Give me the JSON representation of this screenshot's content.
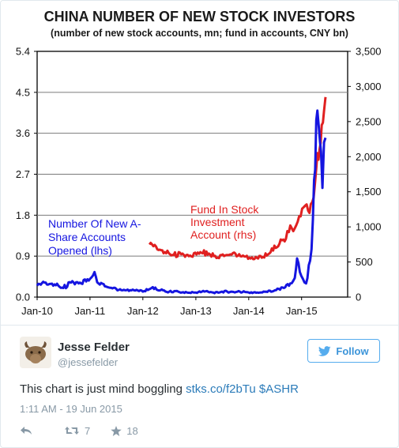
{
  "chart_data": {
    "type": "line",
    "title": "CHINA NUMBER OF NEW STOCK INVESTORS",
    "subtitle": "(number of new stock accounts, mn; fund in accounts, CNY bn)",
    "x_ticks": [
      "Jan-10",
      "Jan-11",
      "Jan-12",
      "Jan-13",
      "Jan-14",
      "Jan-15"
    ],
    "y_left": {
      "ticks": [
        "0.0",
        "0.9",
        "1.8",
        "2.7",
        "3.6",
        "4.5",
        "5.4"
      ],
      "lim": [
        0,
        5.4
      ]
    },
    "y_right": {
      "ticks": [
        "0",
        "500",
        "1,000",
        "1,500",
        "2,000",
        "2,500",
        "3,000",
        "3,500"
      ],
      "lim": [
        0,
        3500
      ]
    },
    "grid": true,
    "series": [
      {
        "name": "Number Of New A-Share Accounts Opened (lhs)",
        "label_lines": [
          "Number Of New A-",
          "Share Accounts",
          "Opened (lhs)"
        ],
        "axis": "left",
        "color": "#1515e0",
        "x": [
          "2010-01-01",
          "2010-03-01",
          "2010-05-01",
          "2010-07-01",
          "2010-09-01",
          "2010-11-01",
          "2011-01-01",
          "2011-02-01",
          "2011-03-01",
          "2011-05-01",
          "2011-07-01",
          "2011-09-01",
          "2011-11-01",
          "2012-01-01",
          "2012-03-01",
          "2012-05-01",
          "2012-07-01",
          "2012-09-01",
          "2012-11-01",
          "2013-01-01",
          "2013-03-01",
          "2013-05-01",
          "2013-07-01",
          "2013-09-01",
          "2013-11-01",
          "2014-01-01",
          "2014-03-01",
          "2014-05-01",
          "2014-07-01",
          "2014-09-01",
          "2014-10-15",
          "2014-11-15",
          "2014-12-01",
          "2014-12-20",
          "2015-01-10",
          "2015-02-01",
          "2015-03-01",
          "2015-03-20",
          "2015-04-05",
          "2015-04-20",
          "2015-05-01",
          "2015-05-15",
          "2015-05-25",
          "2015-06-05",
          "2015-06-15"
        ],
        "values": [
          0.25,
          0.32,
          0.28,
          0.2,
          0.35,
          0.3,
          0.4,
          0.55,
          0.3,
          0.22,
          0.18,
          0.15,
          0.15,
          0.12,
          0.2,
          0.15,
          0.12,
          0.12,
          0.1,
          0.1,
          0.12,
          0.1,
          0.12,
          0.12,
          0.12,
          0.1,
          0.1,
          0.12,
          0.15,
          0.2,
          0.3,
          0.42,
          0.85,
          0.55,
          0.4,
          0.3,
          0.8,
          1.7,
          2.8,
          4.1,
          3.7,
          3.2,
          2.4,
          3.4,
          3.5
        ]
      },
      {
        "name": "Fund In Stock Investment Account (rhs)",
        "label_lines": [
          "Fund In Stock",
          "Investment",
          "Account (rhs)"
        ],
        "axis": "right",
        "color": "#e02020",
        "x": [
          "2012-02-15",
          "2012-04-01",
          "2012-06-01",
          "2012-08-01",
          "2012-10-01",
          "2012-12-01",
          "2013-02-01",
          "2013-04-01",
          "2013-06-01",
          "2013-08-01",
          "2013-10-01",
          "2013-12-01",
          "2014-02-01",
          "2014-04-01",
          "2014-06-01",
          "2014-08-01",
          "2014-09-15",
          "2014-10-15",
          "2014-11-15",
          "2014-12-15",
          "2015-01-15",
          "2015-02-15",
          "2015-03-15",
          "2015-04-05",
          "2015-04-20",
          "2015-05-05",
          "2015-05-20",
          "2015-06-05",
          "2015-06-15"
        ],
        "values": [
          750,
          720,
          640,
          600,
          620,
          580,
          640,
          620,
          560,
          600,
          620,
          580,
          540,
          560,
          640,
          760,
          830,
          1020,
          980,
          1150,
          1280,
          1230,
          1350,
          1650,
          2050,
          2100,
          2450,
          2650,
          2850
        ]
      }
    ]
  },
  "tweet": {
    "author_name": "Jesse Felder",
    "author_handle": "@jessefelder",
    "follow_label": "Follow",
    "text_prefix": "This chart is just mind boggling ",
    "text_link": "stks.co/f2bTu",
    "text_suffix": " $ASHR",
    "timestamp": "1:11 AM - 19 Jun 2015",
    "retweet_count": "7",
    "favorite_count": "18"
  },
  "icons": {
    "follow": "twitter-bird-icon",
    "reply": "reply-icon",
    "retweet": "retweet-icon",
    "favorite": "star-icon"
  },
  "colors": {
    "accent": "#55acee",
    "link": "#2b7bb9",
    "muted": "#8899a6"
  }
}
